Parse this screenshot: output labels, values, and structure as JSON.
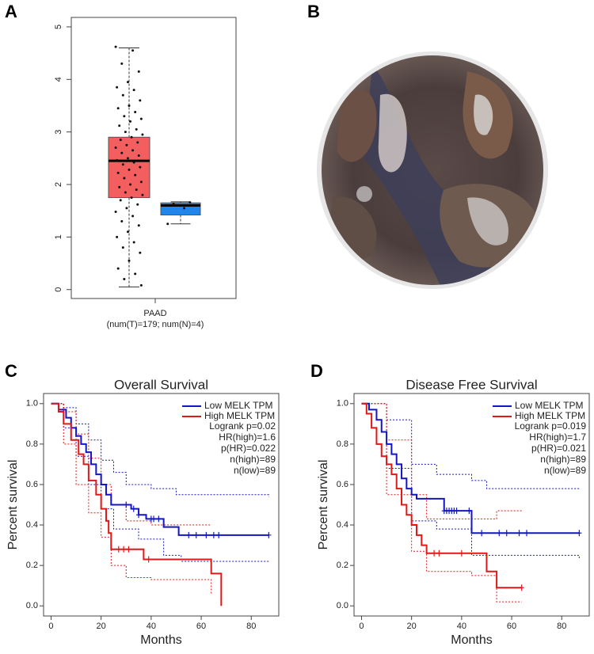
{
  "panel_labels": [
    "A",
    "B",
    "C",
    "D"
  ],
  "chart_data": [
    {
      "type": "box",
      "categories": [
        "PAAD"
      ],
      "category_note": "(num(T)=179; num(N)=4)",
      "ylim": [
        -0.17,
        5.18
      ],
      "yticks": [
        0,
        1,
        2,
        3,
        4,
        5
      ],
      "boxes": [
        {
          "color": "#f35e5f",
          "min": 0.05,
          "q1": 1.75,
          "median": 2.45,
          "q3": 2.9,
          "max": 4.6,
          "points": [
            4.62,
            4.55,
            4.3,
            4.15,
            3.95,
            3.85,
            3.8,
            3.7,
            3.6,
            3.5,
            3.45,
            3.38,
            3.3,
            3.25,
            3.2,
            3.12,
            3.05,
            3.0,
            2.95,
            2.9,
            2.85,
            2.8,
            2.75,
            2.7,
            2.65,
            2.6,
            2.55,
            2.5,
            2.46,
            2.42,
            2.38,
            2.33,
            2.28,
            2.22,
            2.18,
            2.12,
            2.05,
            2.0,
            1.95,
            1.9,
            1.85,
            1.8,
            1.75,
            1.7,
            1.62,
            1.55,
            1.48,
            1.4,
            1.3,
            1.22,
            1.1,
            1.0,
            0.9,
            0.8,
            0.7,
            0.55,
            0.4,
            0.3,
            0.2,
            0.08
          ]
        },
        {
          "color": "#1f86ee",
          "min": 1.25,
          "q1": 1.42,
          "median": 1.6,
          "q3": 1.65,
          "max": 1.67,
          "points": [
            1.25,
            1.55,
            1.63,
            1.66
          ]
        }
      ]
    },
    {
      "type": "survival",
      "title": "Overall Survival",
      "xlabel": "Months",
      "ylabel": "Percent survival",
      "xlim": [
        -3,
        91
      ],
      "ylim": [
        -0.05,
        1.05
      ],
      "xticks": [
        0,
        20,
        40,
        60,
        80
      ],
      "yticks": [
        {
          "value": 0,
          "label": "0.0"
        },
        0.2,
        0.4,
        0.6,
        0.8,
        {
          "value": 1,
          "label": "1.0"
        }
      ],
      "annotations": [
        "Logrank p=0.02",
        "HR(high)=1.6",
        "p(HR)=0.022",
        "n(high)=89",
        "n(low)=89"
      ],
      "series": [
        {
          "name": "Low MELK TPM",
          "color": "#1515c8",
          "x": [
            0,
            3,
            6,
            8,
            10,
            12,
            14,
            16,
            18,
            20,
            22,
            24,
            32,
            35,
            38,
            45,
            51,
            87
          ],
          "values": [
            1,
            0.97,
            0.93,
            0.88,
            0.84,
            0.8,
            0.76,
            0.7,
            0.65,
            0.6,
            0.55,
            0.5,
            0.48,
            0.45,
            0.43,
            0.39,
            0.35,
            0.35
          ],
          "censor": [
            30,
            33,
            35,
            40,
            41,
            43,
            55,
            58,
            62,
            65,
            67,
            87
          ]
        },
        {
          "name": "High MELK TPM",
          "color": "#e01818",
          "x": [
            0,
            3,
            5,
            8,
            11,
            13,
            15,
            18,
            20,
            22,
            23,
            24,
            37,
            64,
            68
          ],
          "values": [
            1,
            0.96,
            0.9,
            0.82,
            0.75,
            0.7,
            0.62,
            0.55,
            0.48,
            0.42,
            0.36,
            0.28,
            0.23,
            0.16,
            0
          ],
          "censor": [
            27,
            29,
            31,
            39
          ]
        }
      ],
      "bands": [
        {
          "color": "#1515c8",
          "x": [
            0,
            5,
            10,
            15,
            20,
            25,
            30,
            40,
            50,
            87
          ],
          "values": [
            1,
            0.98,
            0.9,
            0.82,
            0.72,
            0.66,
            0.6,
            0.58,
            0.55,
            0.54
          ]
        },
        {
          "color": "#1515c8",
          "x": [
            0,
            5,
            10,
            15,
            20,
            25,
            35,
            45,
            52,
            87
          ],
          "values": [
            1,
            0.88,
            0.74,
            0.6,
            0.48,
            0.38,
            0.33,
            0.25,
            0.22,
            0.22
          ]
        },
        {
          "color": "#e01818",
          "x": [
            0,
            5,
            10,
            15,
            20,
            24,
            30,
            40,
            64
          ],
          "values": [
            1,
            0.96,
            0.85,
            0.73,
            0.6,
            0.5,
            0.42,
            0.4,
            0.4
          ]
        },
        {
          "color": "#e01818",
          "x": [
            0,
            5,
            10,
            15,
            20,
            24,
            30,
            40,
            64
          ],
          "values": [
            1,
            0.8,
            0.6,
            0.46,
            0.34,
            0.2,
            0.14,
            0.13,
            0.06
          ]
        }
      ]
    },
    {
      "type": "survival",
      "title": "Disease Free Survival",
      "xlabel": "Months",
      "ylabel": "Percent survival",
      "xlim": [
        -3,
        91
      ],
      "ylim": [
        -0.05,
        1.05
      ],
      "xticks": [
        0,
        20,
        40,
        60,
        80
      ],
      "yticks": [
        {
          "value": 0,
          "label": "0.0"
        },
        0.2,
        0.4,
        0.6,
        0.8,
        {
          "value": 1,
          "label": "1.0"
        }
      ],
      "annotations": [
        "Logrank p=0.019",
        "HR(high)=1.7",
        "p(HR)=0.021",
        "n(high)=89",
        "n(low)=89"
      ],
      "series": [
        {
          "name": "Low MELK TPM",
          "color": "#1515c8",
          "x": [
            0,
            3,
            6,
            8,
            10,
            12,
            14,
            16,
            18,
            20,
            22,
            33,
            44,
            87
          ],
          "values": [
            1,
            0.97,
            0.92,
            0.86,
            0.8,
            0.75,
            0.7,
            0.63,
            0.58,
            0.55,
            0.53,
            0.47,
            0.36,
            0.36
          ],
          "censor": [
            33,
            34,
            35,
            36,
            37,
            38,
            43,
            48,
            55,
            58,
            63,
            66,
            87
          ]
        },
        {
          "name": "High MELK TPM",
          "color": "#e01818",
          "x": [
            0,
            2,
            4,
            6,
            8,
            10,
            12,
            14,
            16,
            18,
            20,
            22,
            24,
            26,
            50,
            54,
            64
          ],
          "values": [
            1,
            0.95,
            0.88,
            0.8,
            0.74,
            0.7,
            0.65,
            0.58,
            0.5,
            0.45,
            0.4,
            0.35,
            0.3,
            0.26,
            0.17,
            0.09,
            0.09
          ],
          "censor": [
            29,
            31,
            40,
            64
          ]
        }
      ],
      "bands": [
        {
          "color": "#1515c8",
          "x": [
            0,
            10,
            20,
            30,
            44,
            50,
            87
          ],
          "values": [
            1,
            0.92,
            0.7,
            0.65,
            0.62,
            0.58,
            0.58
          ]
        },
        {
          "color": "#1515c8",
          "x": [
            0,
            10,
            20,
            30,
            44,
            87
          ],
          "values": [
            1,
            0.68,
            0.42,
            0.38,
            0.25,
            0.23
          ]
        },
        {
          "color": "#e01818",
          "x": [
            0,
            10,
            20,
            26,
            44,
            54,
            64
          ],
          "values": [
            1,
            0.82,
            0.55,
            0.43,
            0.43,
            0.47,
            0.47
          ]
        },
        {
          "color": "#e01818",
          "x": [
            0,
            10,
            20,
            26,
            44,
            54,
            64
          ],
          "values": [
            1,
            0.55,
            0.27,
            0.17,
            0.15,
            0.02,
            0.02
          ]
        }
      ]
    }
  ]
}
